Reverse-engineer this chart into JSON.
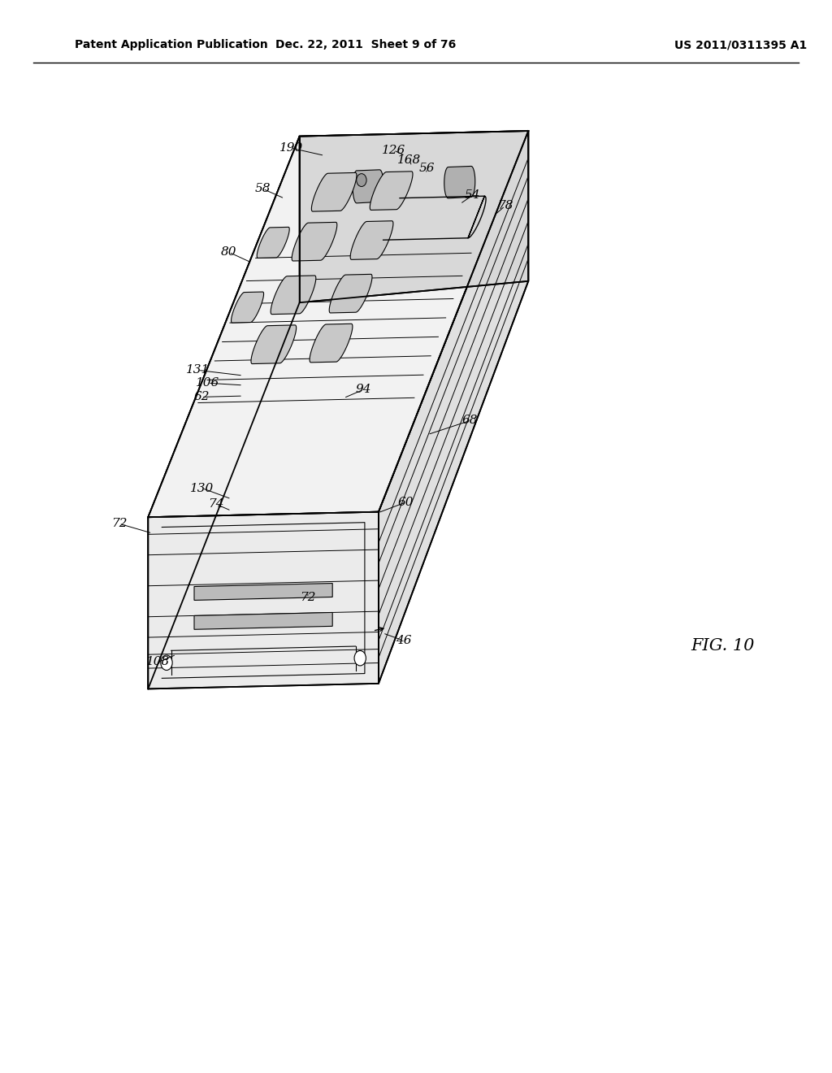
{
  "background_color": "#ffffff",
  "header_left": "Patent Application Publication",
  "header_center": "Dec. 22, 2011  Sheet 9 of 76",
  "header_right": "US 2011/0311395 A1",
  "fig_label": "FIG. 10",
  "line_color": "#000000"
}
